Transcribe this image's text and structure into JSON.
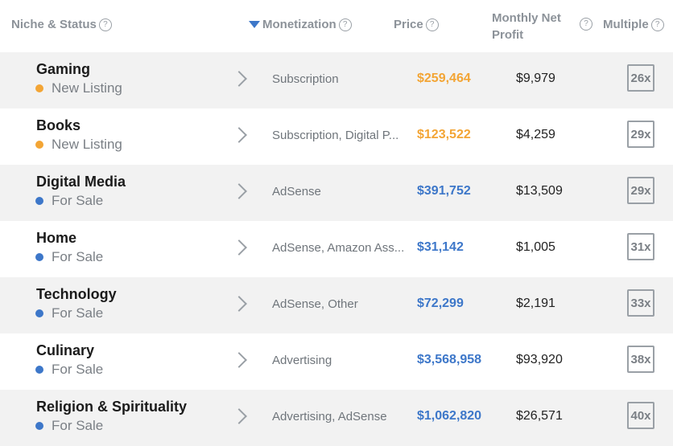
{
  "header": {
    "niche_status": "Niche & Status",
    "monetization": "Monetization",
    "price": "Price",
    "monthly_net_profit": "Monthly Net Profit",
    "multiple": "Multiple",
    "help_glyph": "?"
  },
  "colors": {
    "accent_blue": "#3d77c9",
    "new_listing_orange": "#f3a535",
    "row_shade": "#f2f2f2"
  },
  "rows": [
    {
      "niche": "Gaming",
      "status": "New Listing",
      "status_color": "orange",
      "monetization": "Subscription",
      "price": "$259,464",
      "profit": "$9,979",
      "multiple": "26x"
    },
    {
      "niche": "Books",
      "status": "New Listing",
      "status_color": "orange",
      "monetization": "Subscription, Digital P...",
      "price": "$123,522",
      "profit": "$4,259",
      "multiple": "29x"
    },
    {
      "niche": "Digital Media",
      "status": "For Sale",
      "status_color": "blue",
      "monetization": "AdSense",
      "price": "$391,752",
      "profit": "$13,509",
      "multiple": "29x"
    },
    {
      "niche": "Home",
      "status": "For Sale",
      "status_color": "blue",
      "monetization": "AdSense, Amazon Ass...",
      "price": "$31,142",
      "profit": "$1,005",
      "multiple": "31x"
    },
    {
      "niche": "Technology",
      "status": "For Sale",
      "status_color": "blue",
      "monetization": "AdSense, Other",
      "price": "$72,299",
      "profit": "$2,191",
      "multiple": "33x"
    },
    {
      "niche": "Culinary",
      "status": "For Sale",
      "status_color": "blue",
      "monetization": "Advertising",
      "price": "$3,568,958",
      "profit": "$93,920",
      "multiple": "38x"
    },
    {
      "niche": "Religion & Spirituality",
      "status": "For Sale",
      "status_color": "blue",
      "monetization": "Advertising, AdSense",
      "price": "$1,062,820",
      "profit": "$26,571",
      "multiple": "40x"
    }
  ]
}
